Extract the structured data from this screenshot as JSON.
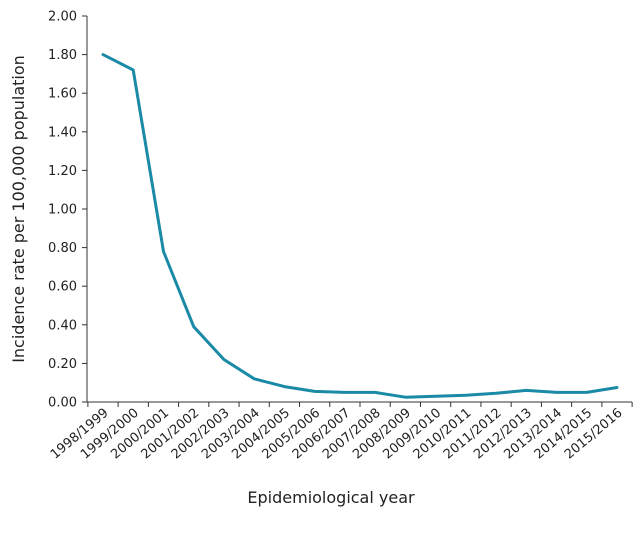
{
  "chart_data": {
    "type": "line",
    "title": "",
    "xlabel": "Epidemiological year",
    "ylabel": "Incidence rate per 100,000 population",
    "ylim": [
      0,
      2.0
    ],
    "yticks": [
      "0.00",
      "0.20",
      "0.40",
      "0.60",
      "0.80",
      "1.00",
      "1.20",
      "1.40",
      "1.60",
      "1.80",
      "2.00"
    ],
    "grid": false,
    "categories": [
      "1998/1999",
      "1999/2000",
      "2000/2001",
      "2001/2002",
      "2002/2003",
      "2003/2004",
      "2004/2005",
      "2005/2006",
      "2006/2007",
      "2007/2008",
      "2008/2009",
      "2009/2010",
      "2010/2011",
      "2011/2012",
      "2012/2013",
      "2013/2014",
      "2014/2015",
      "2015/2016"
    ],
    "series": [
      {
        "color": "#1a8aa6",
        "values": [
          1.8,
          1.72,
          0.78,
          0.39,
          0.22,
          0.12,
          0.08,
          0.055,
          0.05,
          0.05,
          0.025,
          0.03,
          0.035,
          0.045,
          0.06,
          0.05,
          0.05,
          0.075
        ]
      }
    ]
  }
}
